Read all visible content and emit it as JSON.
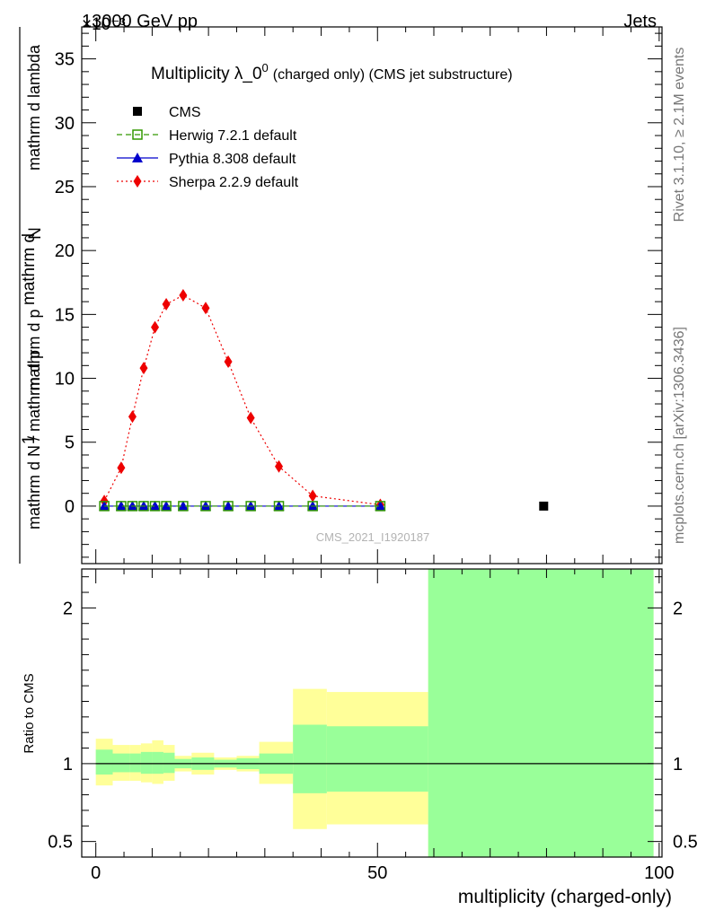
{
  "header": {
    "left": "13000 GeV pp",
    "right": "Jets",
    "exponent": "×10⁻³"
  },
  "side_labels": {
    "rivet": "Rivet 3.1.10, ≥ 2.1M events",
    "mcplots": "mcplots.cern.ch [arXiv:1306.3436]"
  },
  "chart_data": [
    {
      "type": "line",
      "title": "Multiplicity λ_0",
      "title_sup": "0",
      "title_suffix": "(charged only) (CMS jet substructure)",
      "watermark": "CMS_2021_I1920187",
      "ylabel_parts": [
        "mathrm d N / mathrm d p",
        "mathrm d p",
        "mathrm d lambda",
        "mathrm d",
        "N"
      ],
      "ylabel_prefix": "1",
      "ylim": [
        -4.5,
        37.5
      ],
      "yticks": [
        0,
        5,
        10,
        15,
        20,
        25,
        30,
        35
      ],
      "ytick_labels": [
        "0",
        "5",
        "10",
        "15",
        "20",
        "25",
        "30",
        "35"
      ],
      "xlim": [
        -2.5,
        100.5
      ],
      "legend_position": "top-left",
      "series": [
        {
          "name": "CMS",
          "color": "#000000",
          "marker": "square",
          "x": [
            79.5
          ],
          "y": [
            0.0
          ]
        },
        {
          "name": "Herwig 7.2.1 default",
          "color": "#339900",
          "marker": "open-square",
          "line": "dashed",
          "x": [
            1.5,
            4.5,
            6.5,
            8.5,
            10.5,
            12.5,
            15.5,
            19.5,
            23.5,
            27.5,
            32.5,
            38.5,
            50.5
          ],
          "y": [
            0.0,
            0.0,
            0.0,
            0.0,
            0.0,
            0.0,
            0.0,
            0.0,
            0.0,
            0.0,
            0.0,
            0.0,
            0.0
          ]
        },
        {
          "name": "Pythia 8.308 default",
          "color": "#0000cc",
          "marker": "triangle",
          "line": "solid",
          "x": [
            1.5,
            4.5,
            6.5,
            8.5,
            10.5,
            12.5,
            15.5,
            19.5,
            23.5,
            27.5,
            32.5,
            38.5,
            50.5
          ],
          "y": [
            0.0,
            0.0,
            0.0,
            0.0,
            0.0,
            0.0,
            0.0,
            0.0,
            0.0,
            0.0,
            0.0,
            0.0,
            0.0
          ]
        },
        {
          "name": "Sherpa 2.2.9 default",
          "color": "#ee0000",
          "marker": "diamond",
          "line": "dotted",
          "x": [
            1.5,
            4.5,
            6.5,
            8.5,
            10.5,
            12.5,
            15.5,
            19.5,
            23.5,
            27.5,
            32.5,
            38.5,
            50.5
          ],
          "y": [
            0.4,
            3.0,
            7.0,
            10.8,
            14.0,
            15.8,
            16.5,
            15.5,
            11.3,
            6.9,
            3.1,
            0.8,
            0.1
          ]
        }
      ]
    },
    {
      "type": "area",
      "ylabel": "Ratio to CMS",
      "xlabel": "multiplicity (charged-only)",
      "ylim": [
        0.4,
        2.25
      ],
      "yticks": [
        0.5,
        1,
        2
      ],
      "ytick_labels": [
        "0.5",
        "1",
        "2"
      ],
      "xlim": [
        -2.5,
        100.5
      ],
      "xticks": [
        0,
        50,
        100
      ],
      "xtick_labels": [
        "0",
        "50",
        "100"
      ],
      "reference_line": 1,
      "bands": {
        "outer_color": "#ffff99",
        "inner_color": "#99ff99",
        "bins": [
          {
            "x0": 0,
            "x1": 3,
            "inner": [
              0.93,
              1.09
            ],
            "outer": [
              0.86,
              1.16
            ]
          },
          {
            "x0": 3,
            "x1": 6,
            "inner": [
              0.945,
              1.065
            ],
            "outer": [
              0.89,
              1.12
            ]
          },
          {
            "x0": 6,
            "x1": 8,
            "inner": [
              0.945,
              1.065
            ],
            "outer": [
              0.89,
              1.12
            ]
          },
          {
            "x0": 8,
            "x1": 10,
            "inner": [
              0.935,
              1.075
            ],
            "outer": [
              0.88,
              1.13
            ]
          },
          {
            "x0": 10,
            "x1": 12,
            "inner": [
              0.935,
              1.075
            ],
            "outer": [
              0.87,
              1.15
            ]
          },
          {
            "x0": 12,
            "x1": 14,
            "inner": [
              0.94,
              1.07
            ],
            "outer": [
              0.89,
              1.12
            ]
          },
          {
            "x0": 14,
            "x1": 17,
            "inner": [
              0.97,
              1.03
            ],
            "outer": [
              0.95,
              1.05
            ]
          },
          {
            "x0": 17,
            "x1": 21,
            "inner": [
              0.96,
              1.04
            ],
            "outer": [
              0.93,
              1.07
            ]
          },
          {
            "x0": 21,
            "x1": 25,
            "inner": [
              0.975,
              1.025
            ],
            "outer": [
              0.96,
              1.04
            ]
          },
          {
            "x0": 25,
            "x1": 29,
            "inner": [
              0.965,
              1.035
            ],
            "outer": [
              0.95,
              1.05
            ]
          },
          {
            "x0": 29,
            "x1": 35,
            "inner": [
              0.935,
              1.065
            ],
            "outer": [
              0.87,
              1.14
            ]
          },
          {
            "x0": 35,
            "x1": 41,
            "inner": [
              0.81,
              1.25
            ],
            "outer": [
              0.58,
              1.48
            ]
          },
          {
            "x0": 41,
            "x1": 59,
            "inner": [
              0.82,
              1.24
            ],
            "outer": [
              0.61,
              1.46
            ]
          },
          {
            "x0": 59,
            "x1": 99,
            "inner": [
              0.4,
              2.25
            ],
            "outer": [
              0.4,
              2.25
            ]
          }
        ]
      }
    }
  ]
}
